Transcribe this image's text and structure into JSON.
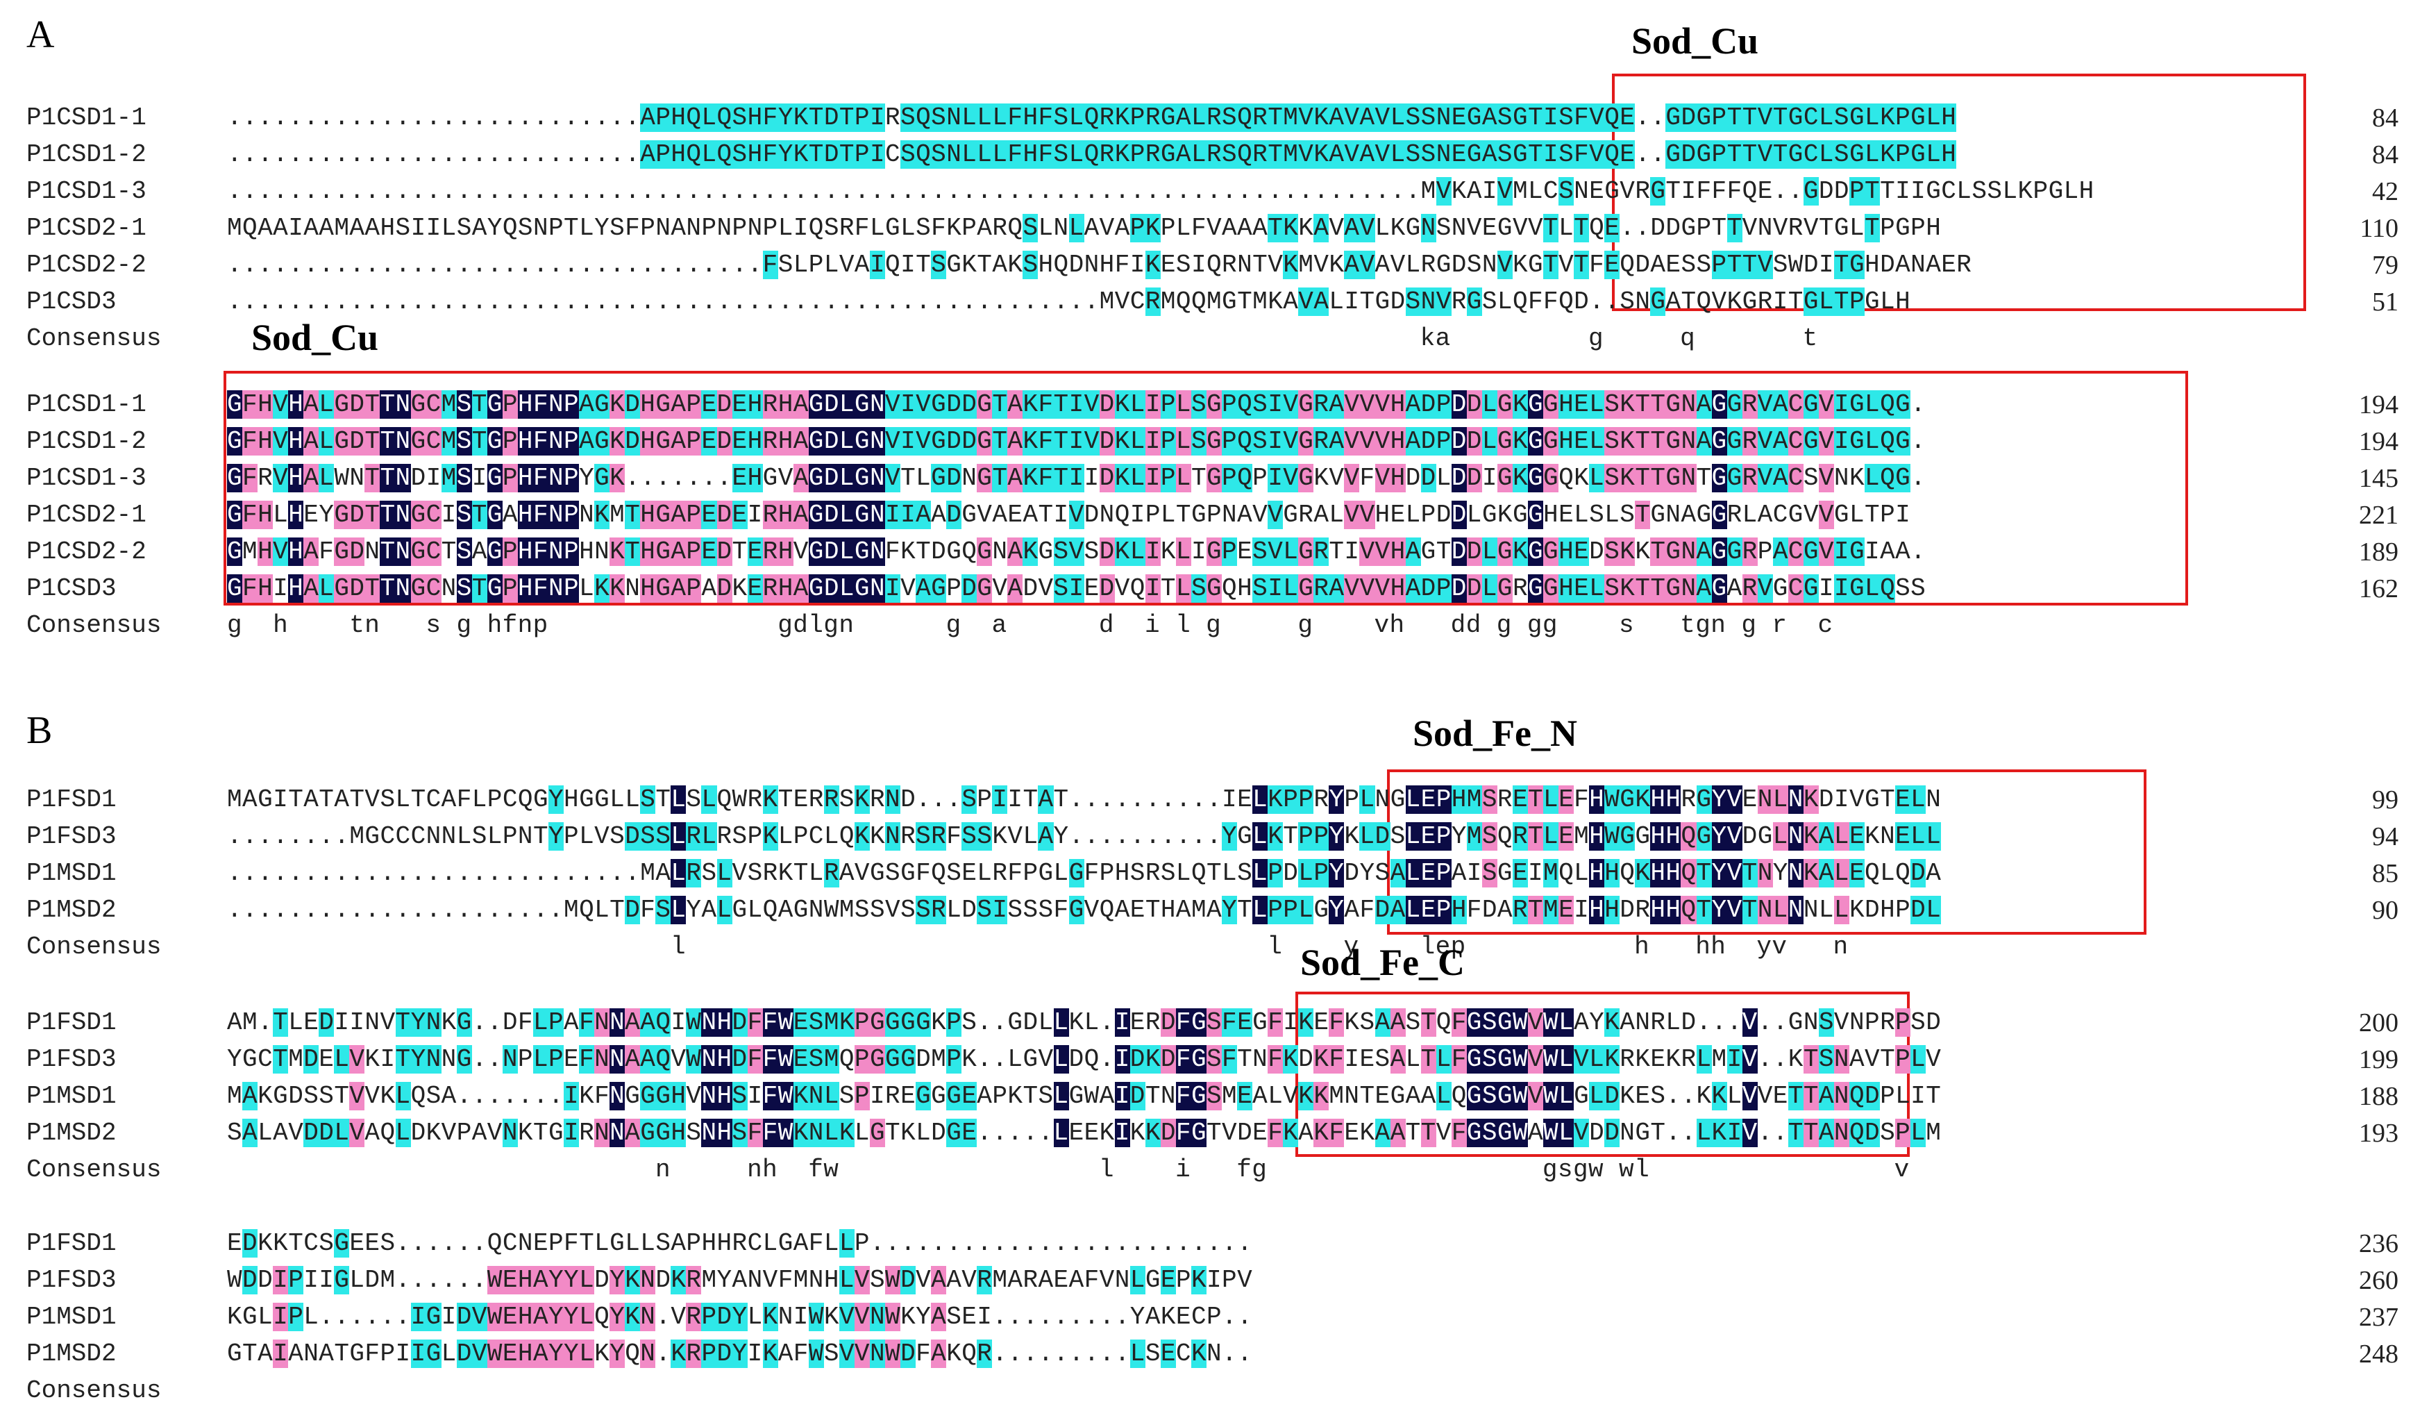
{
  "colors": {
    "identical": "#0b0b45",
    "high_similarity": "#f28ac6",
    "low_similarity": "#2ee8e8",
    "box": "#e21b1b"
  },
  "panels": [
    {
      "label": "A",
      "blocks": [
        {
          "domains": [
            {
              "label": "Sod_Cu"
            }
          ],
          "rows": [
            {
              "name": "P1CSD1-1",
              "seq": "...........................APHQLQSHFYKTDTPIRSQSNLLLFHFSLQRKPRGALRSQRTMVKAVAVLSSNEGASGTISFVQE..GDGPTTVTGCLSGLKPGLH",
              "num": "84"
            },
            {
              "name": "P1CSD1-2",
              "seq": "...........................APHQLQSHFYKTDTPICSQSNLLLFHFSLQRKPRGALRSQRTMVKAVAVLSSNEGASGTISFVQE..GDGPTTVTGCLSGLKPGLH",
              "num": "84"
            },
            {
              "name": "P1CSD1-3",
              "seq": "..............................................................................MVKAIVMLCSNEGVRGTIFFFQE..GDDPTTIIGCLSSLKPGLH",
              "num": "42"
            },
            {
              "name": "P1CSD2-1",
              "seq": "MQAAIAAMAAHSIILSAYQSNPTLYSFPNANPNPNPLIQSRFLGLSFKPARQSLNLAVAPKPLFVAAATKKAVAVLKGNSNVEGVVTLTQE..DDGPTTVNVRVTGLTPGPH",
              "num": "110"
            },
            {
              "name": "P1CSD2-2",
              "seq": "...................................FSLPLVAIQITSGKTAKSHQDNHFIKESIQRNTVKMVKAVAVLRGDSNVKGTVTFEQDAESSPTTVSWDITGHDANAER",
              "num": "79"
            },
            {
              "name": "P1CSD3",
              "seq": ".........................................................MVCRMQQMGTMKAVALITGDSNVRGSLQFFQD..SNGATQVKGRITGLTPGLH",
              "num": "51"
            },
            {
              "name": "Consensus",
              "seq": "                                                                              ka         g     q       t            ",
              "num": ""
            }
          ]
        },
        {
          "domains": [
            {
              "label": "Sod_Cu"
            }
          ],
          "rows": [
            {
              "name": "P1CSD1-1",
              "seq": "GFHVHALGDTTNGCMSTGPHFNPAGKDHGAPEDEHRHAGDLGNVIVGDDGTAKFTIVDKLIPLSGPQSIVGRAVVVHADPDDLGKGGHELSKTTGNAGGRVACGVIGLQG.",
              "num": "194"
            },
            {
              "name": "P1CSD1-2",
              "seq": "GFHVHALGDTTNGCMSTGPHFNPAGKDHGAPEDEHRHAGDLGNVIVGDDGTAKFTIVDKLIPLSGPQSIVGRAVVVHADPDDLGKGGHELSKTTGNAGGRVACGVIGLQG.",
              "num": "194"
            },
            {
              "name": "P1CSD1-3",
              "seq": "GFRVHALWNTTNDIMSIGPHFNPYGK.......EHGVAGDLGNVTLGDNGTAKFTIIDKLIPLTGPQPIVGKVVFVHDDLDDIGKGGQKLSKTTGNTGGRVACSVNKLQG.",
              "num": "145"
            },
            {
              "name": "P1CSD2-1",
              "seq": "GFHLHEYGDTTNGCISTGAHFNPNKMTHGAPEDEIRHAGDLGNIIAADGVAEATIVDNQIPLTGPNAVVGRALVVHELPDDLGKGGHELSLSTGNAGGRLACGVVGLTPI",
              "num": "221"
            },
            {
              "name": "P1CSD2-2",
              "seq": "GMHVHAFGDNTNGCTSAGPHFNPHNKTHGAPEDTERHVGDLGNFKTDGQGNAKGSVSDKLIKLIGPESVLGRTIVVHAGTDDLGKGGHEDSKKTGNAGGRPACGVIGIAA.",
              "num": "189"
            },
            {
              "name": "P1CSD3",
              "seq": "GFHIHALGDTTNGCNSTGPHFNPLKKNHGAPADKERHAGDLGNIVAGPDGVADVSIEDVQITLSGQHSILGRAVVVHADPDDLGRGGHELSKTTGNAGARVGCGIIGLQSS",
              "num": "162"
            },
            {
              "name": "Consensus",
              "seq": "g  h    tn   s g hfnp               gdlgn      g  a      d  i l g     g    vh   dd g gg    s   tgn g r  c       ",
              "num": ""
            }
          ]
        }
      ]
    },
    {
      "label": "B",
      "blocks": [
        {
          "domains": [
            {
              "label": "Sod_Fe_N"
            }
          ],
          "rows": [
            {
              "name": "P1FSD1",
              "seq": "MAGITATATVSLTCAFLPCQGYHGGLLSTLSLQWRKTERRSKRND...SPIITAT..........IELKPPRYPLNGLEPHMSRETLEFHWGKHHRGYVENLNKDIVGTELN",
              "num": "99"
            },
            {
              "name": "P1FSD3",
              "seq": "........MGCCCNNLSLPNTYPLVSDSSLRLRSPKLPCLQKKNRSRFSSKVLAY..........YGLKTPPYKLDSLEPYMSQRTLEMHWGGHHQGYVDGLNKALEKNELL",
              "num": "94"
            },
            {
              "name": "P1MSD1",
              "seq": "...........................MALRSLVSRKTLRAVGSGFQSELRFPGLGFPHSRSLQTLSLPDLPYDYSALEPAISGEIMQLHHQKHHQTYVTNYNKALEQLQDA",
              "num": "85"
            },
            {
              "name": "P1MSD2",
              "seq": "......................MQLTDFSLYALGLQAGNWMSSVSSRLDSISSSFGVQAETHAMAYTLPPLGYAFDALEPHFDARTMEIHHDRHHQTYVTNLNNLLKDHPDL",
              "num": "90"
            },
            {
              "name": "Consensus",
              "seq": "                             l                                      l    y    lep           h   hh  yv   n       ",
              "num": ""
            }
          ]
        },
        {
          "domains": [
            {
              "label": "Sod_Fe_C"
            }
          ],
          "rows": [
            {
              "name": "P1FSD1",
              "seq": "AM.TLEDIINVTYNKG..DFLPAFNNAAQIWNHDFFWESMKPGGGGKPS..GDLLKL.IERDFGSFEGFIKEFKSAASTQFGSGWVWLAYKANRLD...V..GNSVNPRPSD",
              "num": "200"
            },
            {
              "name": "P1FSD3",
              "seq": "YGCTMDELVKITYNNG..NPLPEFNNAAQVWNHDFFWESMQPGGGDMPK..LGVLDQ.IDKDFGSFTNFKDKFIESALTLFGSGWVWLVLKRKEKRLMIV..KTSNAVTPLV",
              "num": "199"
            },
            {
              "name": "P1MSD1",
              "seq": "MAKGDSSTVVKLQSA.......IKFNGGGHVNHSIFWKNLSPIREGGGEAPKTSLGWAIDTNFGSMEALVKKMNTEGAALQGSGWVWLGLDKES..KKLVVETTANQDPLIT",
              "num": "188"
            },
            {
              "name": "P1MSD2",
              "seq": "SALAVDDLVAQLDKVPAVNKTGIRNNAGGHSNHSFFWKNLKLGTKLDGE.....LEEKIKKDFGTVDEFKAKFEKAATTVFGSGWAWLVDDNGT..LKIV..TTANQDSPLM",
              "num": "193"
            },
            {
              "name": "Consensus",
              "seq": "                            n     nh  fw                 l    i   fg                  gsgw wl                v        ",
              "num": ""
            }
          ]
        },
        {
          "domains": [],
          "rows": [
            {
              "name": "P1FSD1",
              "seq": "EDKKTCSGEES......QCNEPFTLGLLSAPHHRCLGAFLLP.........................",
              "num": "236"
            },
            {
              "name": "P1FSD3",
              "seq": "WDDIPIIGLDM......WEHAYYLDYKNDKRMYANVFMNHLVSWDVAAVRMARAEAFVNLGEPKIPV",
              "num": "260"
            },
            {
              "name": "P1MSD1",
              "seq": "KGLIPL......IGIDVWEHAYYLQYKN.VRPDYLKNIWKVVNWKYASEI.........YAKECP..",
              "num": "237"
            },
            {
              "name": "P1MSD2",
              "seq": "GTAIANATGFPIIGLDVWEHAYYLKYQN.KRPDYIKAFWSVVNWDFAKQR.........LSECKN..",
              "num": "248"
            },
            {
              "name": "Consensus",
              "seq": "",
              "num": ""
            }
          ]
        }
      ]
    }
  ]
}
